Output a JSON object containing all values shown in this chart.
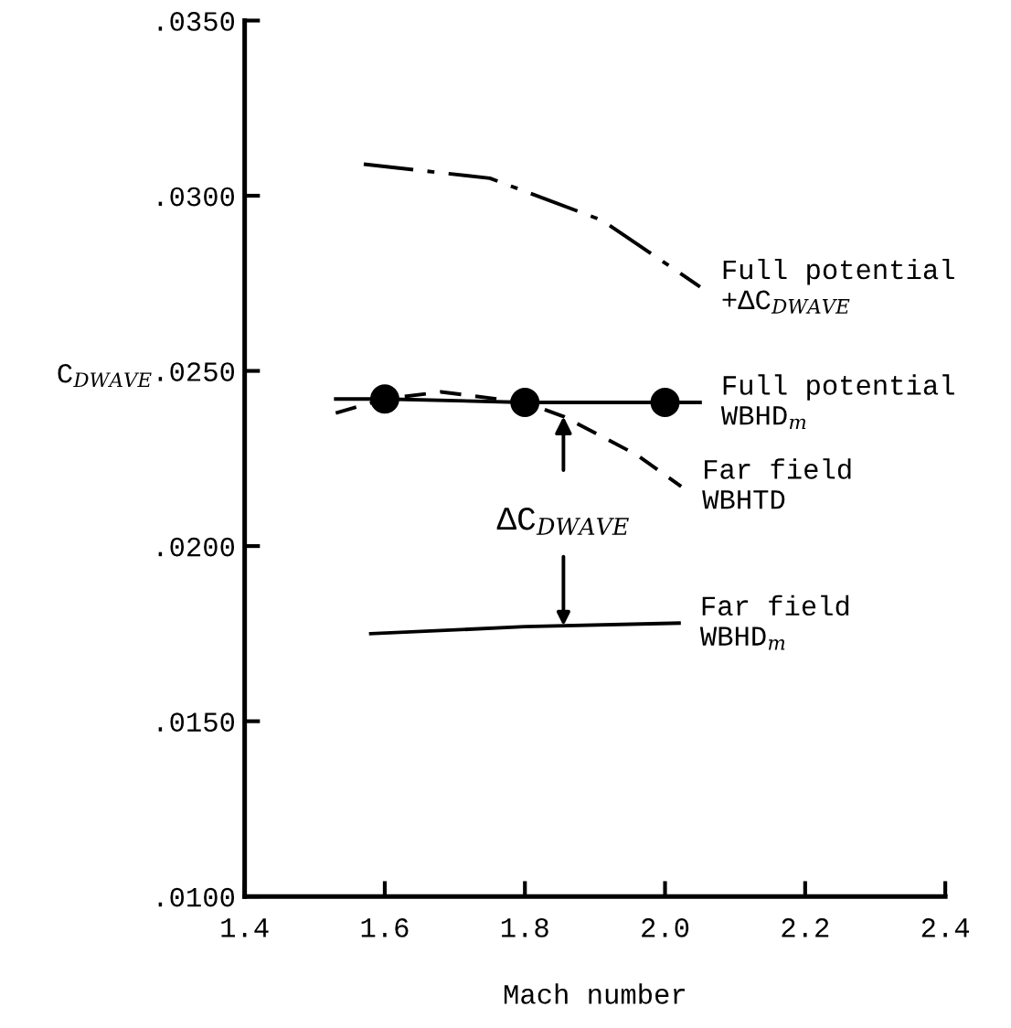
{
  "chart_data": {
    "type": "line",
    "xlabel": "Mach number",
    "ylabel": "C$_{DWAVE}$",
    "xlim": [
      1.4,
      2.4
    ],
    "xticks": [
      {
        "value": 1.4,
        "label": "1.4"
      },
      {
        "value": 1.6,
        "label": "1.6"
      },
      {
        "value": 1.8,
        "label": "1.8"
      },
      {
        "value": 2.0,
        "label": "2.0"
      },
      {
        "value": 2.2,
        "label": "2.2"
      },
      {
        "value": 2.4,
        "label": "2.4"
      }
    ],
    "ylim": [
      0.01,
      0.035
    ],
    "yticks": [
      {
        "value": 0.01,
        "label": ".0100"
      },
      {
        "value": 0.015,
        "label": ".0150"
      },
      {
        "value": 0.02,
        "label": ".0200"
      },
      {
        "value": 0.025,
        "label": ".0250"
      },
      {
        "value": 0.03,
        "label": ".0300"
      },
      {
        "value": 0.035,
        "label": ".0350"
      }
    ],
    "grid": false,
    "legend": false,
    "series": [
      {
        "name": "Full potential\n+ΔC$_{DWAVE}$",
        "color": "#000000",
        "line_style": "dashdot",
        "x": [
          1.57,
          1.75,
          1.91,
          2.05
        ],
        "values": [
          0.0309,
          0.0305,
          0.0293,
          0.0274
        ]
      },
      {
        "name": "Full potential\nWBHD$_{m}$",
        "color": "#000000",
        "line_style": "solid",
        "x": [
          1.53,
          1.6,
          1.8,
          2.0,
          2.05
        ],
        "values": [
          0.0242,
          0.0242,
          0.0241,
          0.0241,
          0.0241
        ]
      },
      {
        "type": "scatter",
        "color": "#000000",
        "marker": "circle",
        "x": [
          1.6,
          1.8,
          2.0
        ],
        "values": [
          0.0242,
          0.0241,
          0.0241
        ]
      },
      {
        "name": "Far field\nWBHTD",
        "color": "#000000",
        "line_style": "dashed",
        "x": [
          1.53,
          1.6,
          1.68,
          1.8,
          1.855,
          1.96,
          2.023
        ],
        "values": [
          0.0238,
          0.0242,
          0.0244,
          0.0241,
          0.0237,
          0.0226,
          0.0217
        ]
      },
      {
        "name": "Far field\nWBHD$_{m}$",
        "color": "#000000",
        "line_style": "solid",
        "x": [
          1.58,
          1.8,
          2.02
        ],
        "values": [
          0.0175,
          0.0177,
          0.0178
        ]
      }
    ],
    "annotations": [
      {
        "text": "ΔC$_{DWAVE}$",
        "x": 1.855,
        "y": 0.0237
      }
    ]
  }
}
